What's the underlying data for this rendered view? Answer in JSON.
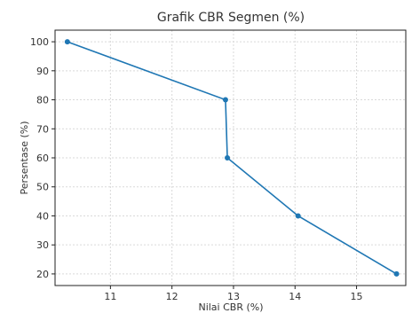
{
  "chart_data": {
    "type": "line",
    "title": "Grafik CBR Segmen (%)",
    "xlabel": "Nilai CBR (%)",
    "ylabel": "Persentase (%)",
    "xlim": [
      10.1,
      15.8
    ],
    "ylim": [
      16,
      104
    ],
    "x_ticks": [
      11,
      12,
      13,
      14,
      15
    ],
    "y_ticks": [
      20,
      30,
      40,
      50,
      60,
      70,
      80,
      90,
      100
    ],
    "grid": true,
    "series": [
      {
        "color": "#1f77b4",
        "points": [
          {
            "x": 10.3,
            "y": 100
          },
          {
            "x": 12.87,
            "y": 80
          },
          {
            "x": 12.9,
            "y": 60
          },
          {
            "x": 14.05,
            "y": 40
          },
          {
            "x": 15.65,
            "y": 20
          }
        ]
      }
    ]
  }
}
